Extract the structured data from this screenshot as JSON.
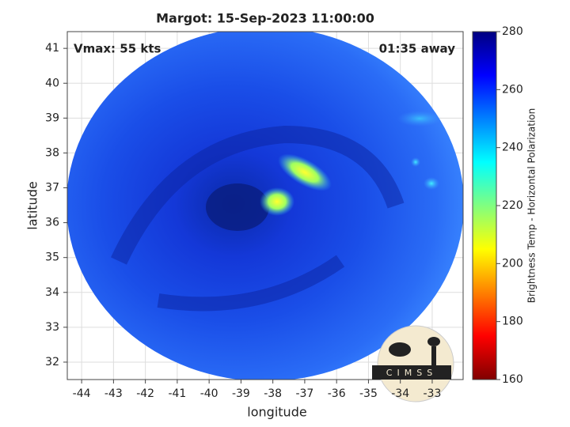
{
  "chart_data": {
    "type": "map",
    "title": "Margot: 15-Sep-2023 11:00:00",
    "annotations": [
      "Vmax: 55 kts",
      "01:35 away"
    ],
    "xlabel": "longitude",
    "ylabel": "latitude",
    "xlim": [
      -44.45,
      -32.03
    ],
    "ylim": [
      31.5,
      41.48
    ],
    "xticks": [
      -44,
      -43,
      -42,
      -41,
      -40,
      -39,
      -38,
      -37,
      -36,
      -35,
      -34,
      -33
    ],
    "yticks": [
      32,
      33,
      34,
      35,
      36,
      37,
      38,
      39,
      40,
      41
    ],
    "grid": true,
    "colorbar": {
      "label": "Brightness Temp - Horizontal Polarization",
      "lim": [
        160,
        280
      ],
      "ticks": [
        160,
        180,
        200,
        220,
        240,
        260,
        280
      ],
      "colormap": [
        "#800000",
        "#ff0000",
        "#ff8000",
        "#ffff00",
        "#80ff80",
        "#00ffff",
        "#0080ff",
        "#0000ff",
        "#000080"
      ]
    }
  },
  "logo": "CIMSS"
}
